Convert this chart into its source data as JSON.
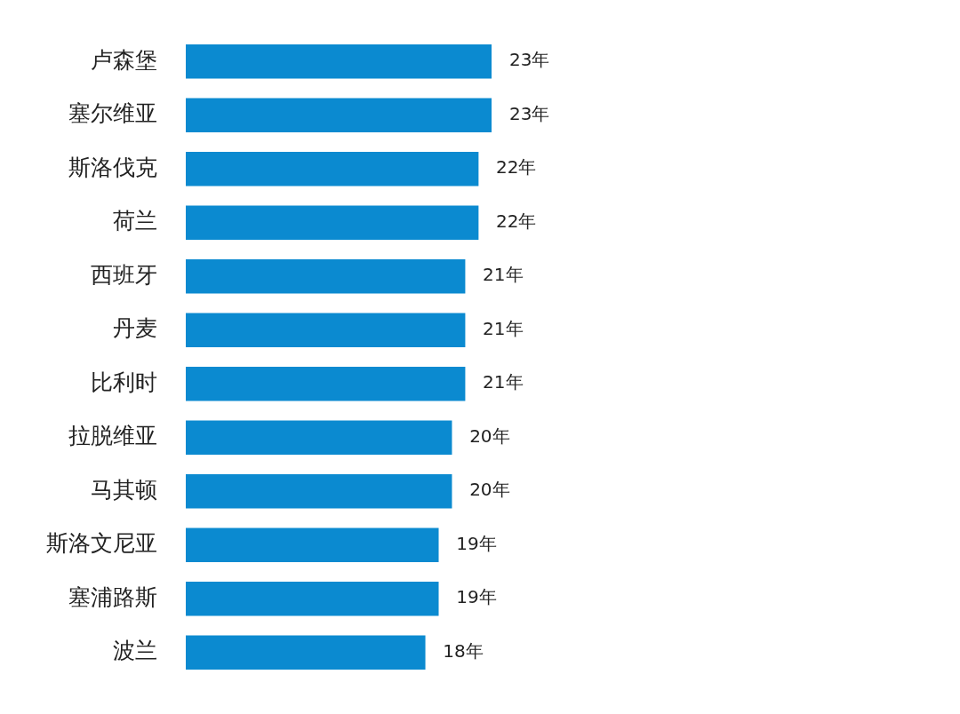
{
  "chart_data": {
    "type": "bar",
    "orientation": "horizontal",
    "categories": [
      "卢森堡",
      "塞尔维亚",
      "斯洛伐克",
      "荷兰",
      "西班牙",
      "丹麦",
      "比利时",
      "拉脱维亚",
      "马其顿",
      "斯洛文尼亚",
      "塞浦路斯",
      "波兰"
    ],
    "values": [
      23,
      23,
      22,
      22,
      21,
      21,
      21,
      20,
      20,
      19,
      19,
      18
    ],
    "value_labels": [
      "23年",
      "23年",
      "22年",
      "22年",
      "21年",
      "21年",
      "21年",
      "20年",
      "20年",
      "19年",
      "19年",
      "18年"
    ],
    "color": "#0b8ad0",
    "legend": false
  }
}
